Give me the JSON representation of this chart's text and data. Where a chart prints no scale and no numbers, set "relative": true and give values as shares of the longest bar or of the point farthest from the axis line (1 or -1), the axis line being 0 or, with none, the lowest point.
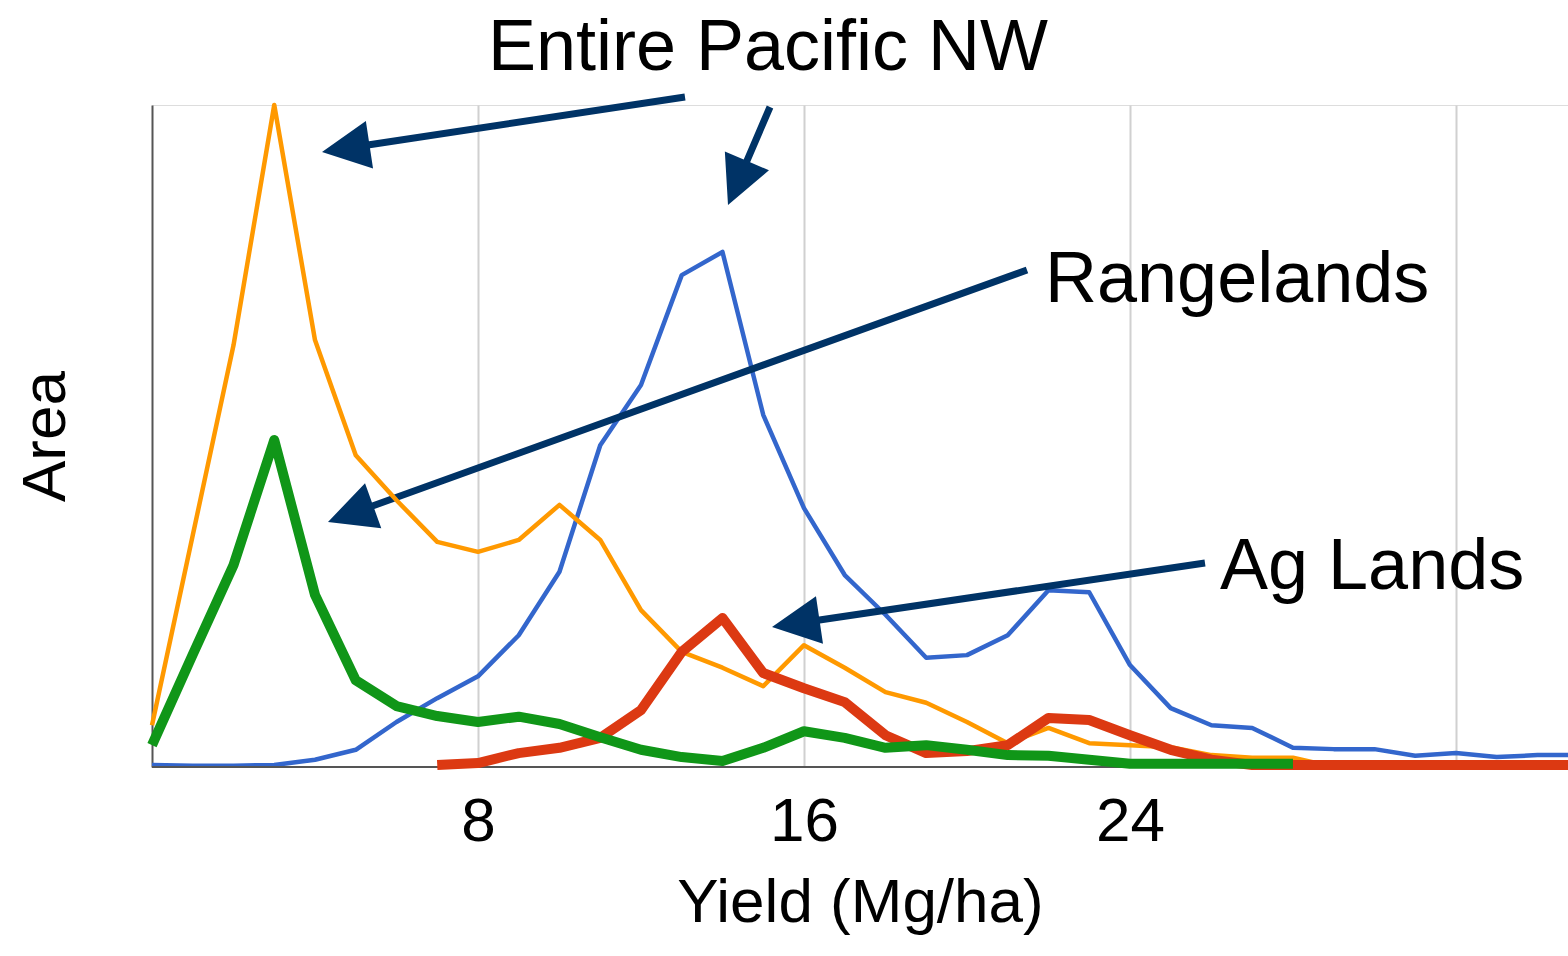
{
  "chart_data": {
    "type": "line",
    "xlabel": "Yield (Mg/ha)",
    "ylabel": "Area",
    "relative": true,
    "xlim": [
      0,
      34.75
    ],
    "xticks": [
      8,
      16,
      24,
      {
        "value": 32,
        "label": null
      }
    ],
    "grid": "x",
    "legend": false,
    "marker": "none",
    "line_style": "solid",
    "annotations": [
      "Entire Pacific NW",
      "Rangelands",
      "Ag Lands"
    ],
    "series": [
      {
        "color": "#3366cc",
        "x": [
          0,
          1,
          2,
          3,
          4,
          5,
          6,
          7,
          8,
          9,
          10,
          11,
          12,
          13,
          14,
          15,
          16,
          17,
          18,
          19,
          20,
          21,
          22,
          23,
          24,
          25,
          26,
          27,
          28,
          29,
          30,
          31,
          32,
          33,
          34,
          34.75
        ],
        "values": [
          0.003,
          0.002,
          0.002,
          0.003,
          0.011,
          0.026,
          0.068,
          0.104,
          0.137,
          0.199,
          0.295,
          0.486,
          0.577,
          0.743,
          0.778,
          0.532,
          0.391,
          0.29,
          0.23,
          0.165,
          0.169,
          0.199,
          0.267,
          0.264,
          0.154,
          0.089,
          0.063,
          0.059,
          0.029,
          0.027,
          0.027,
          0.017,
          0.021,
          0.015,
          0.018,
          0.018
        ]
      },
      {
        "color": "#ff9900",
        "x": [
          0,
          1,
          2,
          3,
          4,
          5,
          6,
          7,
          8,
          9,
          10,
          11,
          12,
          13,
          14,
          15,
          16,
          17,
          18,
          19,
          20,
          21,
          22,
          23,
          24,
          25,
          26,
          27,
          28,
          29
        ],
        "values": [
          0.063,
          0.35,
          0.637,
          1.0,
          0.645,
          0.471,
          0.403,
          0.34,
          0.325,
          0.343,
          0.396,
          0.343,
          0.237,
          0.174,
          0.15,
          0.122,
          0.184,
          0.15,
          0.113,
          0.097,
          0.068,
          0.036,
          0.059,
          0.036,
          0.033,
          0.03,
          0.018,
          0.014,
          0.014,
          0
        ]
      },
      {
        "color": "#dc3912",
        "x": [
          7,
          8,
          9,
          10,
          11,
          12,
          13,
          14,
          15,
          16,
          17,
          18,
          19,
          20,
          21,
          22,
          23,
          24,
          25,
          26,
          27,
          28,
          29,
          30,
          31,
          32,
          33,
          34,
          34.75
        ],
        "values": [
          0.003,
          0.006,
          0.021,
          0.029,
          0.044,
          0.086,
          0.174,
          0.225,
          0.142,
          0.119,
          0.098,
          0.048,
          0.021,
          0.024,
          0.033,
          0.074,
          0.071,
          0.048,
          0.026,
          0.011,
          0.003,
          0.003,
          0.003,
          0.003,
          0.003,
          0.003,
          0.003,
          0.003,
          0.003
        ]
      },
      {
        "color": "#109618",
        "x": [
          0,
          1,
          2,
          3,
          4,
          5,
          6,
          7,
          8,
          9,
          10,
          11,
          12,
          13,
          14,
          15,
          16,
          17,
          18,
          19,
          20,
          21,
          22,
          23,
          24,
          25,
          26,
          27,
          28
        ],
        "values": [
          0.033,
          0.17,
          0.305,
          0.494,
          0.26,
          0.131,
          0.092,
          0.077,
          0.068,
          0.076,
          0.065,
          0.045,
          0.026,
          0.015,
          0.009,
          0.029,
          0.054,
          0.044,
          0.029,
          0.033,
          0.026,
          0.018,
          0.017,
          0.011,
          0.005,
          0.005,
          0.005,
          0.005,
          0.005
        ]
      }
    ]
  }
}
